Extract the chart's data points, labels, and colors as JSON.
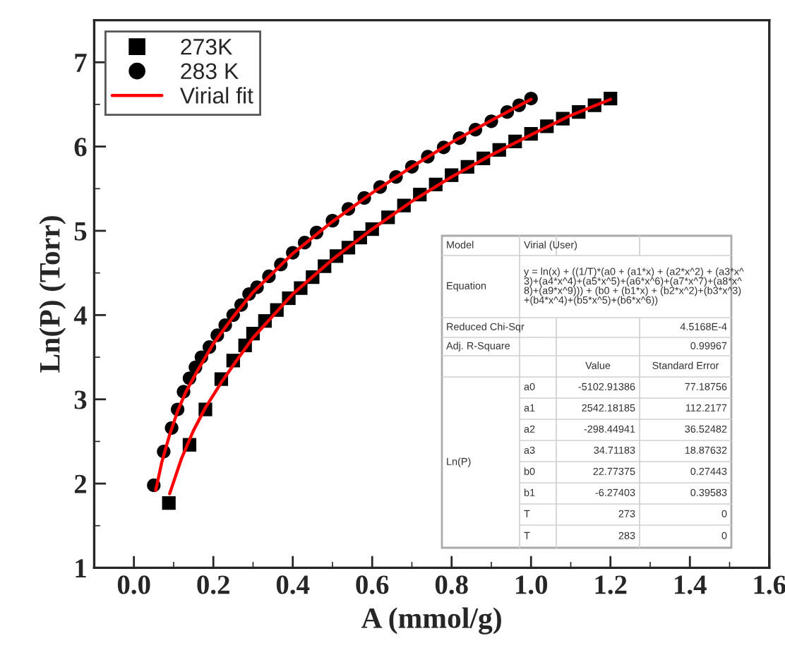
{
  "chart_data": {
    "type": "scatter",
    "xlabel": "A (mmol/g)",
    "ylabel": "Ln(P) (Torr)",
    "xlim": [
      -0.1,
      1.6
    ],
    "xticks": [
      {
        "value": 0,
        "label": "0.0"
      },
      0.2,
      0.4,
      0.6,
      0.8,
      {
        "value": 1,
        "label": "1.0"
      },
      1.2,
      1.4,
      1.6
    ],
    "ylim": [
      1,
      7.5
    ],
    "yticks": [
      1,
      2,
      3,
      4,
      5,
      6,
      7
    ],
    "grid": false,
    "legend": "top left",
    "series": [
      {
        "name": "273K",
        "marker": "square",
        "color": "#000000",
        "x": [
          0.088,
          0.14,
          0.18,
          0.22,
          0.25,
          0.28,
          0.3,
          0.33,
          0.36,
          0.39,
          0.42,
          0.45,
          0.48,
          0.51,
          0.54,
          0.57,
          0.6,
          0.64,
          0.68,
          0.72,
          0.76,
          0.8,
          0.84,
          0.88,
          0.92,
          0.96,
          1.0,
          1.04,
          1.08,
          1.12,
          1.16,
          1.2
        ],
        "values": [
          1.77,
          2.46,
          2.88,
          3.24,
          3.46,
          3.64,
          3.78,
          3.93,
          4.06,
          4.2,
          4.32,
          4.45,
          4.58,
          4.7,
          4.8,
          4.92,
          5.02,
          5.16,
          5.3,
          5.43,
          5.55,
          5.66,
          5.76,
          5.86,
          5.96,
          6.06,
          6.15,
          6.24,
          6.33,
          6.41,
          6.49,
          6.57
        ]
      },
      {
        "name": "283 K",
        "marker": "circle",
        "color": "#000000",
        "x": [
          0.05,
          0.075,
          0.095,
          0.11,
          0.125,
          0.14,
          0.155,
          0.17,
          0.19,
          0.21,
          0.23,
          0.25,
          0.27,
          0.29,
          0.31,
          0.34,
          0.37,
          0.4,
          0.43,
          0.46,
          0.5,
          0.54,
          0.58,
          0.62,
          0.66,
          0.7,
          0.74,
          0.78,
          0.82,
          0.86,
          0.9,
          0.94,
          0.97,
          1.0
        ],
        "values": [
          1.98,
          2.38,
          2.66,
          2.88,
          3.09,
          3.25,
          3.38,
          3.5,
          3.62,
          3.76,
          3.88,
          4.0,
          4.12,
          4.25,
          4.33,
          4.46,
          4.6,
          4.74,
          4.86,
          4.98,
          5.12,
          5.26,
          5.39,
          5.52,
          5.64,
          5.76,
          5.88,
          5.99,
          6.1,
          6.2,
          6.3,
          6.41,
          6.49,
          6.57
        ]
      },
      {
        "name": "Virial fit",
        "type": "line",
        "line_style": "solid",
        "color": "#ff0000",
        "x": [
          0.09,
          0.12,
          0.15,
          0.18,
          0.22,
          0.26,
          0.3,
          0.4,
          0.5,
          0.6,
          0.7,
          0.8,
          0.9,
          1.0,
          1.1,
          1.2
        ],
        "values": [
          1.88,
          2.3,
          2.63,
          2.9,
          3.2,
          3.47,
          3.73,
          4.25,
          4.66,
          5.02,
          5.35,
          5.64,
          5.9,
          6.14,
          6.37,
          6.56
        ]
      },
      {
        "type": "line",
        "line_style": "solid",
        "color": "#ff0000",
        "x": [
          0.055,
          0.07,
          0.09,
          0.11,
          0.13,
          0.16,
          0.2,
          0.25,
          0.3,
          0.4,
          0.5,
          0.6,
          0.7,
          0.8,
          0.9,
          1.0
        ],
        "values": [
          1.92,
          2.25,
          2.58,
          2.86,
          3.08,
          3.34,
          3.66,
          3.98,
          4.27,
          4.73,
          5.11,
          5.45,
          5.76,
          6.05,
          6.31,
          6.56
        ]
      }
    ],
    "annotations": [
      "Model",
      "Virial (User)",
      "Equation",
      "y = ln(x) + ((1/T)*(a0 + (a1*x) + (a2*x^2) + (a3*x^\n3)+(a4*x^4)+(a5*x^5)+(a6*x^6)+(a7*x^7)+(a8*x^\n8)+(a9*x^9))) + (b0 + (b1*x) + (b2*x^2)+(b3*x^3)\n+(b4*x^4)+(b5*x^5)+(b6*x^6))",
      "Reduced Chi-Sqr",
      "4.5168E-4",
      "Adj. R-Square",
      "0.99967",
      "Value",
      "Standard Error",
      "Ln(P)",
      "a0",
      "-5102.91386",
      "77.18756",
      "a1",
      "2542.18185",
      "112.2177",
      "a2",
      "-298.44941",
      "36.52482",
      "a3",
      "34.71183",
      "18.87632",
      "b0",
      "22.77375",
      "0.27443",
      "b1",
      "-6.27403",
      "0.39583",
      "T",
      "273",
      "0",
      "T",
      "283",
      "0"
    ]
  }
}
